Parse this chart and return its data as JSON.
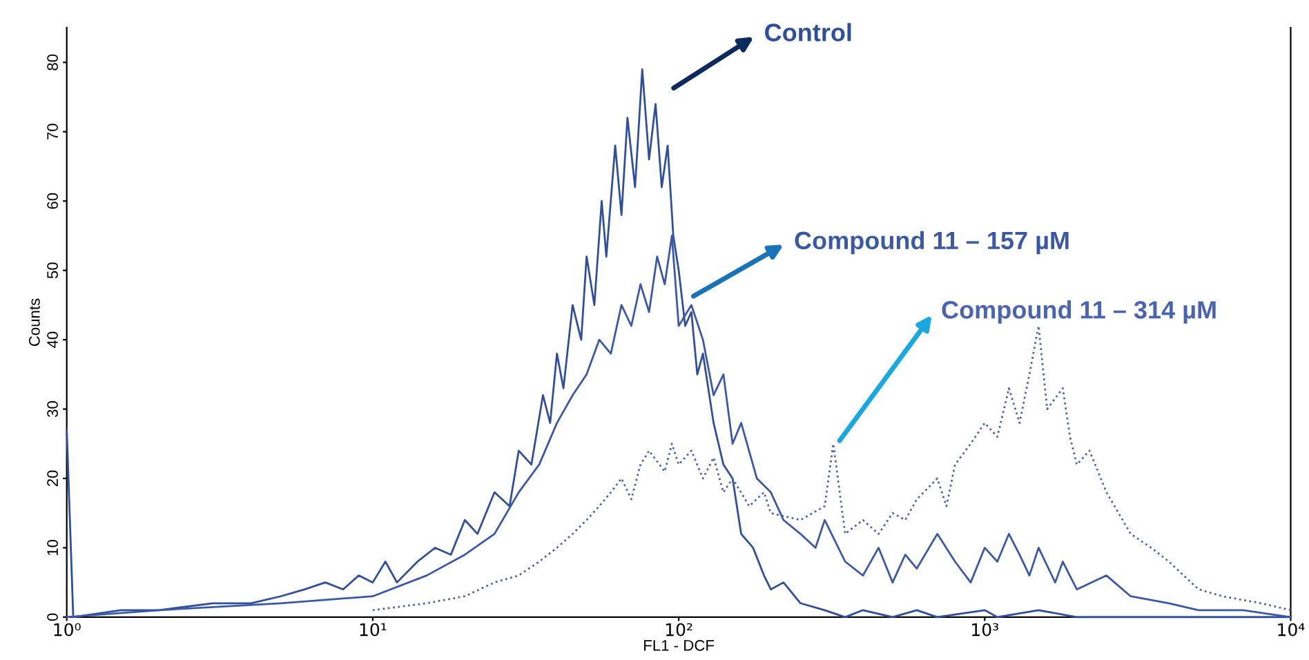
{
  "chart_data": {
    "type": "line",
    "xlabel": "FL1 - DCF",
    "ylabel": "Counts",
    "log": "x",
    "grid": false,
    "legend": false,
    "xlim": [
      1,
      10000
    ],
    "xticks": [
      {
        "value": 1,
        "label": "10⁰"
      },
      {
        "value": 10,
        "label": "10¹"
      },
      {
        "value": 100,
        "label": "10²"
      },
      {
        "value": 1000,
        "label": "10³"
      },
      {
        "value": 10000,
        "label": "10⁴"
      }
    ],
    "ylim": [
      0,
      85
    ],
    "yticks": [
      0,
      10,
      20,
      30,
      40,
      50,
      60,
      70,
      80
    ],
    "series": [
      {
        "name": "Control",
        "color": "#2f4f9c",
        "line_style": "solid",
        "x": [
          1,
          1.05,
          1.5,
          2,
          3,
          4,
          5,
          6,
          7,
          8,
          9,
          10,
          11,
          12,
          14,
          16,
          18,
          20,
          22,
          25,
          28,
          30,
          33,
          36,
          38,
          40,
          42,
          45,
          48,
          50,
          53,
          56,
          58,
          62,
          65,
          68,
          72,
          76,
          80,
          84,
          88,
          92,
          96,
          100,
          105,
          110,
          115,
          120,
          130,
          140,
          150,
          160,
          175,
          190,
          200,
          220,
          250,
          300,
          350,
          400,
          500,
          600,
          700,
          1000,
          1100,
          1500,
          2000,
          3000,
          5000,
          10000
        ],
        "values": [
          27,
          0,
          1,
          1,
          2,
          2,
          3,
          4,
          5,
          4,
          6,
          5,
          8,
          5,
          8,
          10,
          9,
          14,
          12,
          18,
          16,
          24,
          22,
          32,
          28,
          38,
          33,
          45,
          40,
          52,
          45,
          60,
          52,
          68,
          58,
          72,
          62,
          79,
          66,
          74,
          62,
          68,
          55,
          50,
          42,
          44,
          35,
          38,
          28,
          22,
          20,
          12,
          10,
          6,
          4,
          5,
          2,
          1,
          0,
          1,
          0,
          1,
          0,
          1,
          0,
          1,
          0,
          0,
          0,
          0
        ]
      },
      {
        "name": "Compound 11 – 157 µM",
        "color": "#3a58a8",
        "line_style": "solid",
        "x": [
          1,
          2,
          5,
          10,
          15,
          20,
          25,
          30,
          35,
          40,
          45,
          50,
          55,
          60,
          65,
          70,
          75,
          80,
          85,
          90,
          95,
          100,
          110,
          120,
          130,
          140,
          150,
          160,
          180,
          200,
          220,
          250,
          280,
          300,
          350,
          400,
          450,
          500,
          550,
          600,
          700,
          800,
          900,
          1000,
          1100,
          1200,
          1300,
          1400,
          1500,
          1700,
          1800,
          2000,
          2500,
          3000,
          4000,
          5000,
          7000,
          10000
        ],
        "values": [
          0,
          1,
          2,
          3,
          6,
          9,
          12,
          18,
          22,
          28,
          32,
          35,
          40,
          38,
          45,
          42,
          48,
          44,
          52,
          48,
          55,
          42,
          45,
          40,
          32,
          35,
          25,
          28,
          20,
          18,
          14,
          12,
          10,
          14,
          8,
          6,
          10,
          5,
          9,
          7,
          12,
          8,
          5,
          10,
          8,
          12,
          9,
          6,
          10,
          5,
          8,
          4,
          6,
          3,
          2,
          1,
          1,
          0
        ]
      },
      {
        "name": "Compound 11 – 314 µM",
        "color": "#4a64b0",
        "line_style": "dotted",
        "x": [
          10,
          15,
          20,
          25,
          30,
          35,
          40,
          45,
          50,
          55,
          60,
          65,
          70,
          75,
          80,
          90,
          95,
          100,
          110,
          120,
          130,
          140,
          150,
          170,
          190,
          200,
          250,
          300,
          320,
          350,
          400,
          450,
          500,
          550,
          600,
          700,
          750,
          800,
          900,
          1000,
          1100,
          1200,
          1300,
          1400,
          1500,
          1600,
          1800,
          1900,
          2000,
          2200,
          2500,
          3000,
          3500,
          4000,
          5000,
          6000,
          8000,
          10000
        ],
        "values": [
          1,
          2,
          3,
          5,
          6,
          8,
          10,
          12,
          14,
          16,
          18,
          20,
          17,
          22,
          24,
          21,
          25,
          22,
          24,
          20,
          23,
          18,
          20,
          16,
          18,
          15,
          14,
          16,
          25,
          12,
          14,
          12,
          15,
          14,
          17,
          20,
          16,
          22,
          25,
          28,
          26,
          33,
          28,
          35,
          42,
          30,
          33,
          26,
          22,
          24,
          18,
          12,
          10,
          8,
          4,
          3,
          2,
          1
        ]
      }
    ]
  }
}
